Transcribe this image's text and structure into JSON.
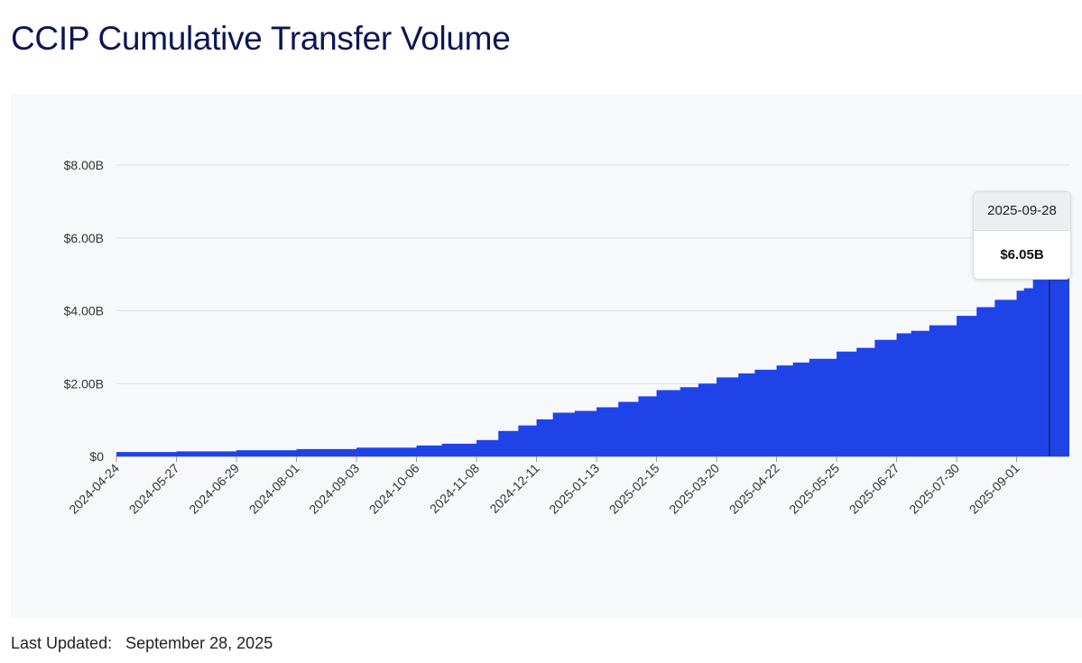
{
  "title": "CCIP Cumulative Transfer Volume",
  "footer": {
    "label": "Last Updated:",
    "value": "September 28, 2025"
  },
  "tooltip": {
    "date": "2025-09-28",
    "value": "$6.05B"
  },
  "colors": {
    "area": "#2043e8",
    "title": "#0c1556",
    "panel": "#f7f8fa"
  },
  "chart_data": {
    "type": "area",
    "x_tick_labels": [
      "2024-04-24",
      "2024-05-27",
      "2024-06-29",
      "2024-08-01",
      "2024-09-03",
      "2024-10-06",
      "2024-11-08",
      "2024-12-11",
      "2025-01-13",
      "2025-02-15",
      "2025-03-20",
      "2025-04-22",
      "2025-05-25",
      "2025-06-27",
      "2025-07-30",
      "2025-09-01"
    ],
    "y_tick_labels": [
      "$0",
      "$2.00B",
      "$4.00B",
      "$6.00B",
      "$8.00B"
    ],
    "ylim": [
      0,
      8
    ],
    "y_unit": "billions USD",
    "grid": true,
    "series": [
      {
        "x": [
          "2024-04-24",
          "2024-05-27",
          "2024-06-29",
          "2024-08-01",
          "2024-09-03",
          "2024-10-06",
          "2024-10-20",
          "2024-11-08",
          "2024-11-20",
          "2024-12-01",
          "2024-12-11",
          "2024-12-20",
          "2025-01-01",
          "2025-01-13",
          "2025-01-25",
          "2025-02-05",
          "2025-02-15",
          "2025-02-28",
          "2025-03-10",
          "2025-03-20",
          "2025-04-01",
          "2025-04-10",
          "2025-04-22",
          "2025-05-01",
          "2025-05-10",
          "2025-05-25",
          "2025-06-05",
          "2025-06-15",
          "2025-06-27",
          "2025-07-05",
          "2025-07-15",
          "2025-07-30",
          "2025-08-10",
          "2025-08-20",
          "2025-09-01",
          "2025-09-05",
          "2025-09-10",
          "2025-09-20",
          "2025-09-28"
        ],
        "values": [
          0.12,
          0.14,
          0.17,
          0.2,
          0.24,
          0.3,
          0.35,
          0.45,
          0.7,
          0.85,
          1.02,
          1.2,
          1.25,
          1.35,
          1.5,
          1.65,
          1.82,
          1.9,
          2.0,
          2.17,
          2.28,
          2.38,
          2.5,
          2.58,
          2.68,
          2.88,
          2.98,
          3.2,
          3.38,
          3.45,
          3.6,
          3.86,
          4.1,
          4.3,
          4.55,
          4.62,
          4.85,
          5.3,
          6.05
        ]
      }
    ]
  }
}
